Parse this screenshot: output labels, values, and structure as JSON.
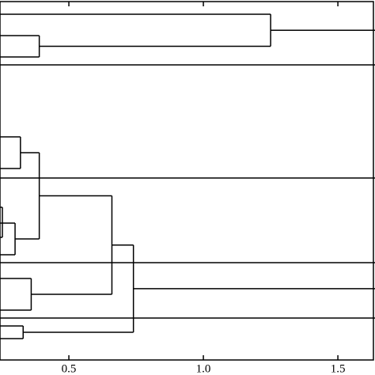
{
  "chart_data": {
    "type": "dendrogram",
    "xlim": [
      0.244,
      1.638
    ],
    "xticks": [
      0.5,
      {
        "value": 1,
        "label": "1.0"
      },
      {
        "value": 1.5,
        "label": "1.5"
      }
    ],
    "heights": [
      1.25,
      0.39,
      0.32,
      0.39,
      0.3,
      0.66,
      0.36,
      0.74,
      0.33
    ],
    "color": "#000000"
  }
}
